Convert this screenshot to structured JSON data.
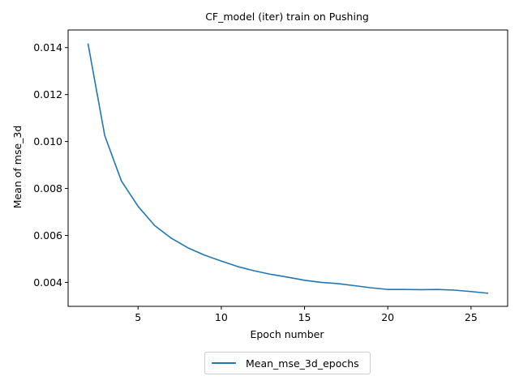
{
  "chart_data": {
    "type": "line",
    "title": "CF_model (iter) train on Pushing",
    "xlabel": "Epoch number",
    "ylabel": "Mean of mse_3d",
    "xlim": [
      0.8,
      27.2
    ],
    "ylim": [
      0.00298,
      0.01475
    ],
    "xticks": [
      5,
      10,
      15,
      20,
      25
    ],
    "xtick_labels": [
      "5",
      "10",
      "15",
      "20",
      "25"
    ],
    "yticks": [
      0.004,
      0.006,
      0.008,
      0.01,
      0.012,
      0.014
    ],
    "ytick_labels": [
      "0.004",
      "0.006",
      "0.008",
      "0.010",
      "0.012",
      "0.014"
    ],
    "grid": false,
    "legend_position": "below-center",
    "series": [
      {
        "name": "Mean_mse_3d_epochs",
        "color": "#1f77b4",
        "x": [
          2,
          3,
          4,
          5,
          6,
          7,
          8,
          9,
          10,
          11,
          12,
          13,
          14,
          15,
          16,
          17,
          18,
          19,
          20,
          21,
          22,
          23,
          24,
          25,
          26
        ],
        "y": [
          0.01415,
          0.01025,
          0.00832,
          0.00724,
          0.00642,
          0.00588,
          0.00547,
          0.00516,
          0.00491,
          0.00467,
          0.00449,
          0.00434,
          0.00422,
          0.00409,
          0.004,
          0.00395,
          0.00386,
          0.00377,
          0.0037,
          0.0037,
          0.00369,
          0.0037,
          0.00367,
          0.00361,
          0.00354
        ]
      }
    ]
  }
}
